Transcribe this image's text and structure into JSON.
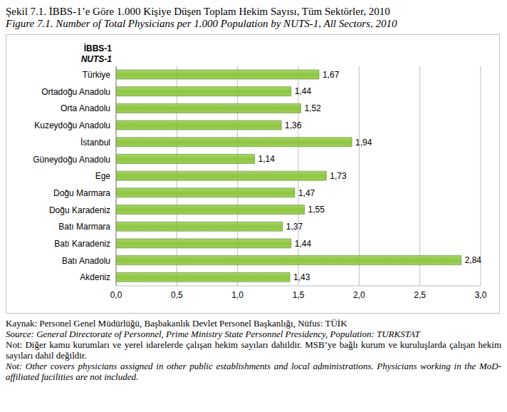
{
  "chart_data": {
    "type": "bar",
    "orientation": "horizontal",
    "title": "Şekil 7.1. İBBS-1’e Göre 1.000 Kişiye Düşen Toplam Hekim Sayısı, Tüm Sektörler, 2010",
    "subtitle": "Figure 7.1. Number of Total Physicians per 1.000 Population by NUTS-1, All Sectors, 2010",
    "ylabel": [
      "İBBS-1",
      "NUTS-1"
    ],
    "categories": [
      "Türkiye",
      "Ortadoğu Anadolu",
      "Orta Anadolu",
      "Kuzeydoğu Anadolu",
      "İstanbul",
      "Güneydoğu Anadolu",
      "Ege",
      "Doğu Marmara",
      "Doğu Karadeniz",
      "Batı Marmara",
      "Batı Karadeniz",
      "Batı Anadolu",
      "Akdeniz"
    ],
    "values": [
      1.67,
      1.44,
      1.52,
      1.36,
      1.94,
      1.14,
      1.73,
      1.47,
      1.55,
      1.37,
      1.44,
      2.84,
      1.43
    ],
    "value_labels": [
      "1,67",
      "1,44",
      "1,52",
      "1,36",
      "1,94",
      "1,14",
      "1,73",
      "1,47",
      "1,55",
      "1,37",
      "1,44",
      "2,84",
      "1,43"
    ],
    "color": "#8dc63f",
    "xlim": [
      0,
      3
    ],
    "xticks": [
      {
        "value": 0,
        "label": "0,0"
      },
      {
        "value": 0.5,
        "label": "0,5"
      },
      {
        "value": 1,
        "label": "1,0"
      },
      {
        "value": 1.5,
        "label": "1,5"
      },
      {
        "value": 2,
        "label": "2,0"
      },
      {
        "value": 2.5,
        "label": "2,5"
      },
      {
        "value": 3,
        "label": "3,0"
      }
    ],
    "grid": true,
    "data_labels": true,
    "annotations": [
      "Kaynak: Personel Genel Müdürlüğü, Başbakanlık Devlet Personel Başkanlığı, Nüfus: TÜİK",
      "Source: General Directorate of Personnel, Prime Ministry State Personnel Presidency, Population: TURKSTAT",
      "Not: Diğer kamu kurumları ve yerel idarelerde çalışan hekim sayıları dahildir. MSB’ye bağlı kurum ve kuruluşlarda çalışan hekim sayıları dahil değildir.",
      "Not: Other covers physicians assigned in other public establishments and local administrations. Physicians working in the MoD-affiliated facilities are not included."
    ]
  }
}
